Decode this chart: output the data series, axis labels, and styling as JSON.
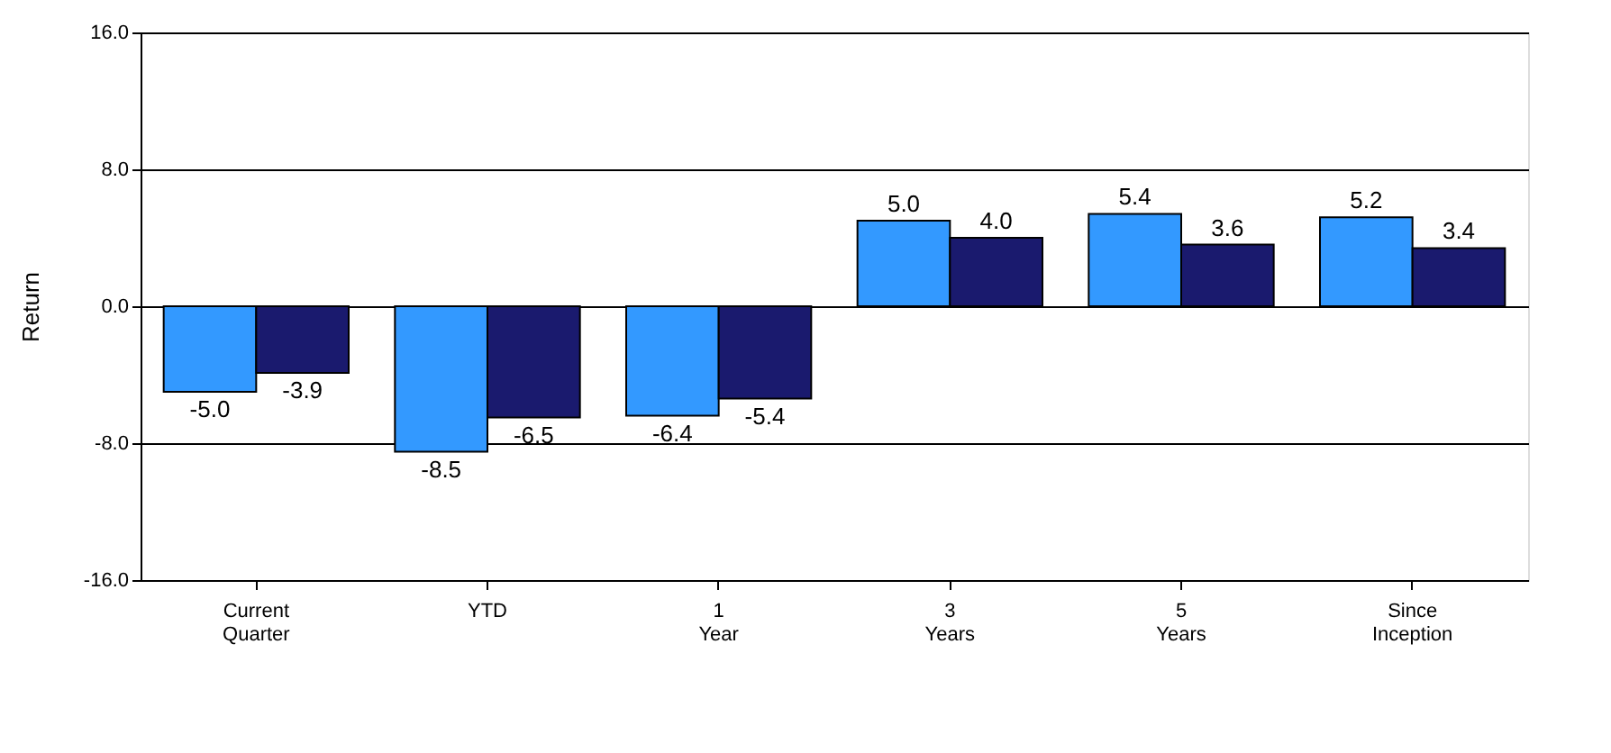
{
  "chart_data": {
    "type": "bar",
    "ylabel": "Return",
    "categories": [
      "Current Quarter",
      "YTD",
      "1 Year",
      "3 Years",
      "5 Years",
      "Since Inception"
    ],
    "series": [
      {
        "color": "#3399ff",
        "values": [
          -5.0,
          -8.5,
          -6.4,
          5.0,
          5.4,
          5.2
        ],
        "value_labels": [
          "-5.0",
          "-8.5",
          "-6.4",
          "5.0",
          "5.4",
          "5.2"
        ]
      },
      {
        "color": "#1a1a6e",
        "values": [
          -3.9,
          -6.5,
          -5.4,
          4.0,
          3.6,
          3.4
        ],
        "value_labels": [
          "-3.9",
          "-6.5",
          "-5.4",
          "4.0",
          "3.6",
          "3.4"
        ]
      }
    ],
    "ylim": [
      -16,
      16
    ],
    "yticks": [
      {
        "value": -16,
        "label": "-16.0"
      },
      {
        "value": -8,
        "label": "-8.0"
      },
      {
        "value": 0,
        "label": "0.0"
      },
      {
        "value": 8,
        "label": "8.0"
      },
      {
        "value": 16,
        "label": "16.0"
      }
    ],
    "grid": "y",
    "legend": false
  }
}
